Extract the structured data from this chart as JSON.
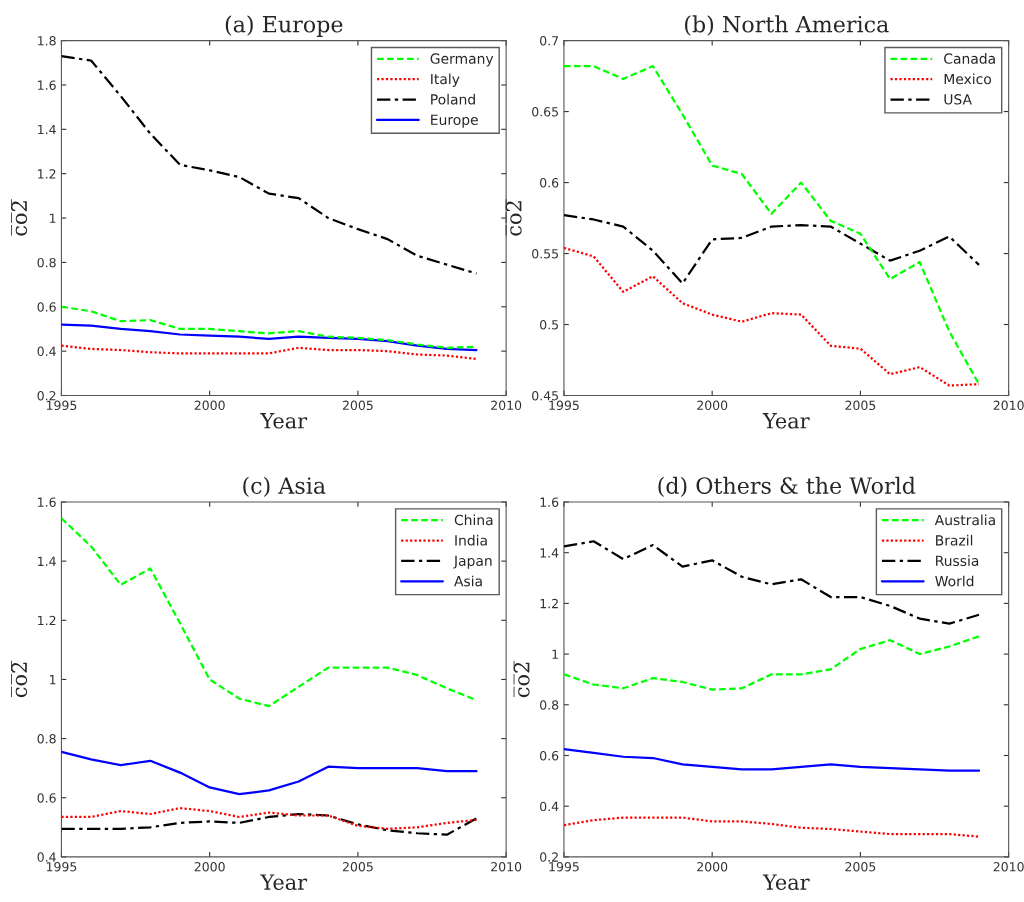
{
  "chart_data": [
    {
      "type": "line",
      "title": "(a) Europe",
      "xlabel": "Year",
      "ylabel": "c̅o̅2̅",
      "x": [
        1995,
        1996,
        1997,
        1998,
        1999,
        2000,
        2001,
        2002,
        2003,
        2004,
        2005,
        2006,
        2007,
        2008,
        2009
      ],
      "xlim": [
        1995,
        2010
      ],
      "xticks": [
        1995,
        2000,
        2005,
        2010
      ],
      "ylim": [
        0.2,
        1.8
      ],
      "yticks": [
        0.2,
        0.4,
        0.6,
        0.8,
        1,
        1.2,
        1.4,
        1.6,
        1.8
      ],
      "grid": false,
      "legend": "top right",
      "series": [
        {
          "name": "Germany",
          "color": "#00ff00",
          "line_style": "dashed",
          "values": [
            0.6,
            0.58,
            0.535,
            0.54,
            0.5,
            0.5,
            0.49,
            0.48,
            0.49,
            0.465,
            0.46,
            0.45,
            0.43,
            0.415,
            0.42
          ]
        },
        {
          "name": "Italy",
          "color": "#ff0000",
          "line_style": "dotted",
          "values": [
            0.425,
            0.41,
            0.405,
            0.395,
            0.39,
            0.39,
            0.39,
            0.39,
            0.415,
            0.405,
            0.405,
            0.4,
            0.385,
            0.38,
            0.365
          ]
        },
        {
          "name": "Poland",
          "color": "#000000",
          "line_style": "dashdot",
          "values": [
            1.73,
            1.71,
            1.55,
            1.38,
            1.24,
            1.215,
            1.185,
            1.11,
            1.09,
            1.0,
            0.95,
            0.905,
            0.83,
            0.79,
            0.75
          ]
        },
        {
          "name": "Europe",
          "color": "#0000ff",
          "line_style": "solid",
          "values": [
            0.52,
            0.515,
            0.5,
            0.49,
            0.475,
            0.47,
            0.465,
            0.455,
            0.465,
            0.46,
            0.455,
            0.445,
            0.425,
            0.41,
            0.405
          ]
        }
      ]
    },
    {
      "type": "line",
      "title": "(b) North America",
      "xlabel": "Year",
      "ylabel": "c̅o̅2̅",
      "x": [
        1995,
        1996,
        1997,
        1998,
        1999,
        2000,
        2001,
        2002,
        2003,
        2004,
        2005,
        2006,
        2007,
        2008,
        2009
      ],
      "xlim": [
        1995,
        2010
      ],
      "xticks": [
        1995,
        2000,
        2005,
        2010
      ],
      "ylim": [
        0.45,
        0.7
      ],
      "yticks": [
        0.45,
        0.5,
        0.55,
        0.6,
        0.65,
        0.7
      ],
      "grid": false,
      "legend": "top right",
      "series": [
        {
          "name": "Canada",
          "color": "#00ff00",
          "line_style": "dashed",
          "values": [
            0.682,
            0.682,
            0.673,
            0.682,
            0.648,
            0.612,
            0.606,
            0.578,
            0.6,
            0.573,
            0.564,
            0.532,
            0.544,
            0.495,
            0.458
          ]
        },
        {
          "name": "Mexico",
          "color": "#ff0000",
          "line_style": "dotted",
          "values": [
            0.554,
            0.548,
            0.523,
            0.534,
            0.515,
            0.507,
            0.502,
            0.508,
            0.507,
            0.485,
            0.483,
            0.465,
            0.47,
            0.457,
            0.458
          ]
        },
        {
          "name": "USA",
          "color": "#000000",
          "line_style": "dashdot",
          "values": [
            0.577,
            0.574,
            0.569,
            0.552,
            0.529,
            0.56,
            0.561,
            0.569,
            0.57,
            0.569,
            0.557,
            0.545,
            0.552,
            0.562,
            0.542
          ]
        }
      ]
    },
    {
      "type": "line",
      "title": "(c) Asia",
      "xlabel": "Year",
      "ylabel": "c̅o̅2̅",
      "x": [
        1995,
        1996,
        1997,
        1998,
        1999,
        2000,
        2001,
        2002,
        2003,
        2004,
        2005,
        2006,
        2007,
        2008,
        2009
      ],
      "xlim": [
        1995,
        2010
      ],
      "xticks": [
        1995,
        2000,
        2005,
        2010
      ],
      "ylim": [
        0.4,
        1.6
      ],
      "yticks": [
        0.4,
        0.6,
        0.8,
        1,
        1.2,
        1.4,
        1.6
      ],
      "grid": false,
      "legend": "top right",
      "series": [
        {
          "name": "China",
          "color": "#00ff00",
          "line_style": "dashed",
          "values": [
            1.545,
            1.45,
            1.32,
            1.375,
            1.19,
            1.0,
            0.935,
            0.91,
            0.975,
            1.04,
            1.04,
            1.04,
            1.015,
            0.97,
            0.93
          ]
        },
        {
          "name": "India",
          "color": "#ff0000",
          "line_style": "dotted",
          "values": [
            0.535,
            0.535,
            0.555,
            0.545,
            0.565,
            0.555,
            0.535,
            0.55,
            0.54,
            0.54,
            0.505,
            0.495,
            0.5,
            0.515,
            0.525
          ]
        },
        {
          "name": "Japan",
          "color": "#000000",
          "line_style": "dashdot",
          "values": [
            0.495,
            0.495,
            0.495,
            0.5,
            0.515,
            0.52,
            0.515,
            0.535,
            0.545,
            0.54,
            0.51,
            0.49,
            0.48,
            0.475,
            0.53
          ]
        },
        {
          "name": "Asia",
          "color": "#0000ff",
          "line_style": "solid",
          "values": [
            0.755,
            0.73,
            0.71,
            0.725,
            0.685,
            0.635,
            0.612,
            0.625,
            0.655,
            0.705,
            0.7,
            0.7,
            0.7,
            0.69,
            0.69
          ]
        }
      ]
    },
    {
      "type": "line",
      "title": "(d) Others & the World",
      "xlabel": "Year",
      "ylabel": "c̅o̅2̅",
      "x": [
        1995,
        1996,
        1997,
        1998,
        1999,
        2000,
        2001,
        2002,
        2003,
        2004,
        2005,
        2006,
        2007,
        2008,
        2009
      ],
      "xlim": [
        1995,
        2010
      ],
      "xticks": [
        1995,
        2000,
        2005,
        2010
      ],
      "ylim": [
        0.2,
        1.6
      ],
      "yticks": [
        0.2,
        0.4,
        0.6,
        0.8,
        1,
        1.2,
        1.4,
        1.6
      ],
      "grid": false,
      "legend": "top right",
      "series": [
        {
          "name": "Australia",
          "color": "#00ff00",
          "line_style": "dashed",
          "values": [
            0.92,
            0.88,
            0.865,
            0.905,
            0.89,
            0.86,
            0.865,
            0.92,
            0.92,
            0.94,
            1.02,
            1.055,
            1.0,
            1.03,
            1.07
          ]
        },
        {
          "name": "Brazil",
          "color": "#ff0000",
          "line_style": "dotted",
          "values": [
            0.325,
            0.345,
            0.355,
            0.355,
            0.355,
            0.34,
            0.34,
            0.33,
            0.315,
            0.31,
            0.3,
            0.29,
            0.29,
            0.29,
            0.28
          ]
        },
        {
          "name": "Russia",
          "color": "#000000",
          "line_style": "dashdot",
          "values": [
            1.425,
            1.445,
            1.375,
            1.43,
            1.345,
            1.37,
            1.305,
            1.275,
            1.295,
            1.225,
            1.225,
            1.19,
            1.14,
            1.12,
            1.155
          ]
        },
        {
          "name": "World",
          "color": "#0000ff",
          "line_style": "solid",
          "values": [
            0.625,
            0.61,
            0.595,
            0.59,
            0.565,
            0.555,
            0.545,
            0.545,
            0.555,
            0.565,
            0.555,
            0.55,
            0.545,
            0.54,
            0.54
          ]
        }
      ]
    }
  ]
}
